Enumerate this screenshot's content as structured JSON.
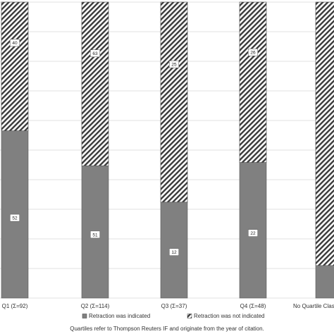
{
  "chart_data": {
    "type": "bar",
    "stacked": true,
    "normalized": true,
    "categories": [
      "Q1 (Σ=92)",
      "Q2 (Σ=114)",
      "Q3 (Σ=37)",
      "Q4 (Σ=48)",
      "No Quartile Clas"
    ],
    "series": [
      {
        "name": "Retraction was indicated",
        "values": [
          52,
          51,
          12,
          22,
          null
        ],
        "labels": [
          "52",
          "51",
          "12",
          "22",
          ""
        ],
        "fractions": [
          0.565,
          0.447,
          0.324,
          0.458,
          0.11
        ],
        "color": "#808080"
      },
      {
        "name": "Retraction was not indicated",
        "values": [
          40,
          63,
          25,
          26,
          null
        ],
        "labels": [
          "40",
          "63",
          "25",
          "26",
          ""
        ],
        "fractions": [
          0.435,
          0.553,
          0.676,
          0.542,
          0.89
        ],
        "color": "#3a3a3a"
      }
    ],
    "ylim": [
      0,
      1
    ],
    "grid": true,
    "legend_position": "bottom",
    "xlabel": "",
    "ylabel": "",
    "note": "Quartiles refer to Thompson Reuters IF and originate from the year of citation."
  }
}
